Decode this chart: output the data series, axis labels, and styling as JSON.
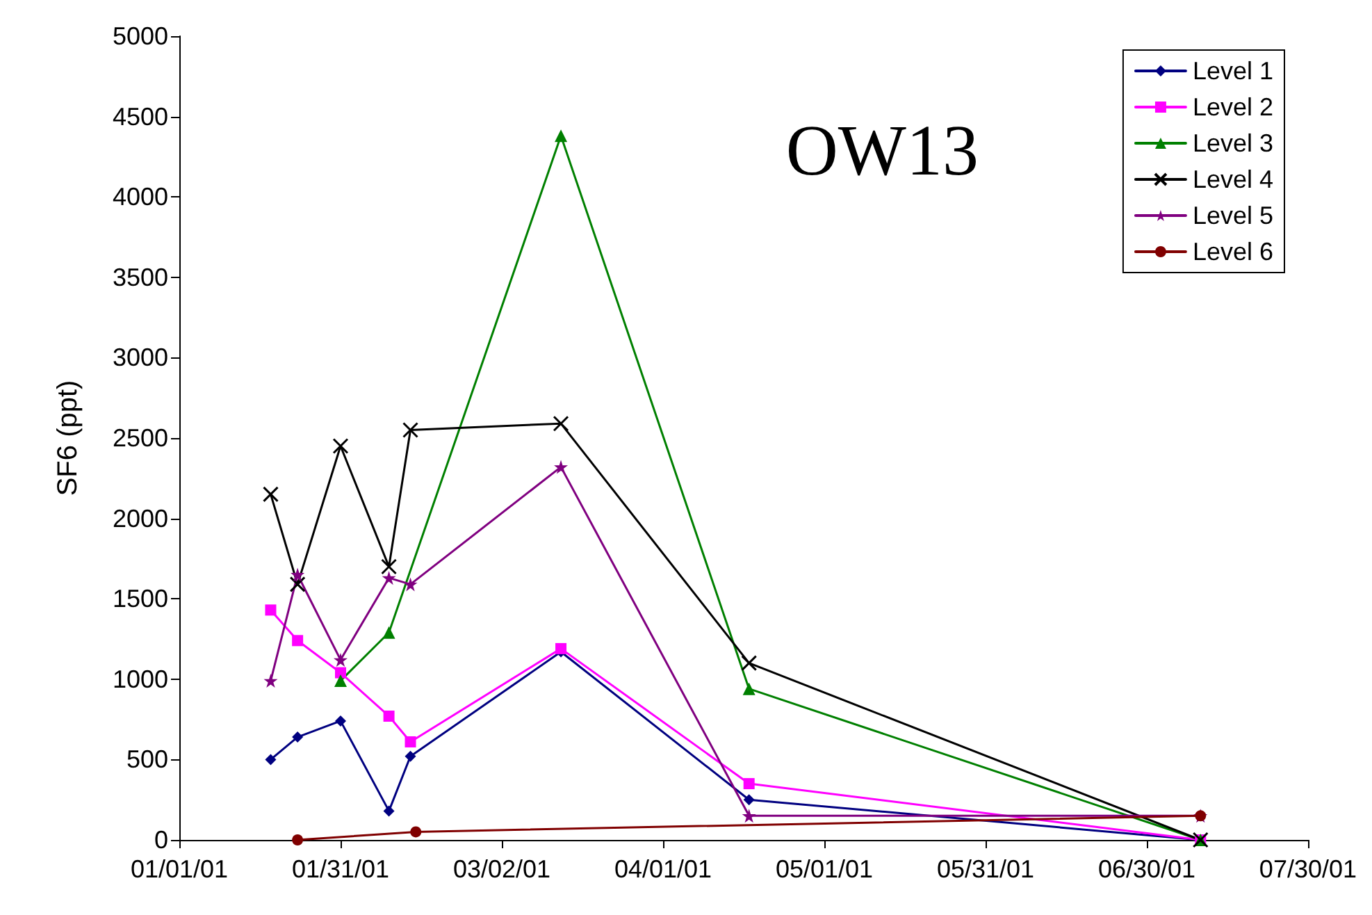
{
  "chart_data": {
    "type": "line",
    "title": "OW13",
    "ylabel": "SF6 (ppt)",
    "xlim": [
      "2001-01-01",
      "2001-07-30"
    ],
    "xticks": [
      {
        "value": "2001-01-01",
        "label": "01/01/01"
      },
      {
        "value": "2001-01-31",
        "label": "01/31/01"
      },
      {
        "value": "2001-03-02",
        "label": "03/02/01"
      },
      {
        "value": "2001-04-01",
        "label": "04/01/01"
      },
      {
        "value": "2001-05-01",
        "label": "05/01/01"
      },
      {
        "value": "2001-05-31",
        "label": "05/31/01"
      },
      {
        "value": "2001-06-30",
        "label": "06/30/01"
      },
      {
        "value": "2001-07-30",
        "label": "07/30/01"
      }
    ],
    "ylim": [
      0,
      5000
    ],
    "yticks": [
      0,
      500,
      1000,
      1500,
      2000,
      2500,
      3000,
      3500,
      4000,
      4500,
      5000
    ],
    "grid": false,
    "legend": "top right",
    "series": [
      {
        "name": "Level 1",
        "color": "#000080",
        "marker": "diamond",
        "x": [
          "2001-01-18",
          "2001-01-23",
          "2001-01-31",
          "2001-02-09",
          "2001-02-13",
          "2001-03-13",
          "2001-04-17",
          "2001-07-10"
        ],
        "values": [
          500,
          640,
          740,
          180,
          520,
          1170,
          250,
          0
        ]
      },
      {
        "name": "Level 2",
        "color": "#ff00ff",
        "marker": "square",
        "x": [
          "2001-01-18",
          "2001-01-23",
          "2001-01-31",
          "2001-02-09",
          "2001-02-13",
          "2001-03-13",
          "2001-04-17",
          "2001-07-10"
        ],
        "values": [
          1430,
          1240,
          1040,
          770,
          610,
          1190,
          350,
          0
        ]
      },
      {
        "name": "Level 3",
        "color": "#008000",
        "marker": "triangle",
        "x": [
          "2001-01-31",
          "2001-02-09",
          "2001-03-13",
          "2001-04-17",
          "2001-07-10"
        ],
        "values": [
          990,
          1290,
          4380,
          940,
          0
        ]
      },
      {
        "name": "Level 4",
        "color": "#000000",
        "marker": "cross",
        "x": [
          "2001-01-18",
          "2001-01-23",
          "2001-01-31",
          "2001-02-09",
          "2001-02-13",
          "2001-03-13",
          "2001-04-17",
          "2001-07-10"
        ],
        "values": [
          2150,
          1590,
          2450,
          1700,
          2550,
          2590,
          1100,
          0
        ]
      },
      {
        "name": "Level 5",
        "color": "#800080",
        "marker": "star",
        "x": [
          "2001-01-18",
          "2001-01-23",
          "2001-01-31",
          "2001-02-09",
          "2001-02-13",
          "2001-03-13",
          "2001-04-17",
          "2001-07-10"
        ],
        "values": [
          990,
          1650,
          1120,
          1630,
          1590,
          2320,
          150,
          150
        ]
      },
      {
        "name": "Level 6",
        "color": "#800000",
        "marker": "circle",
        "x": [
          "2001-01-23",
          "2001-02-14",
          "2001-07-10"
        ],
        "values": [
          0,
          50,
          150
        ]
      }
    ]
  }
}
